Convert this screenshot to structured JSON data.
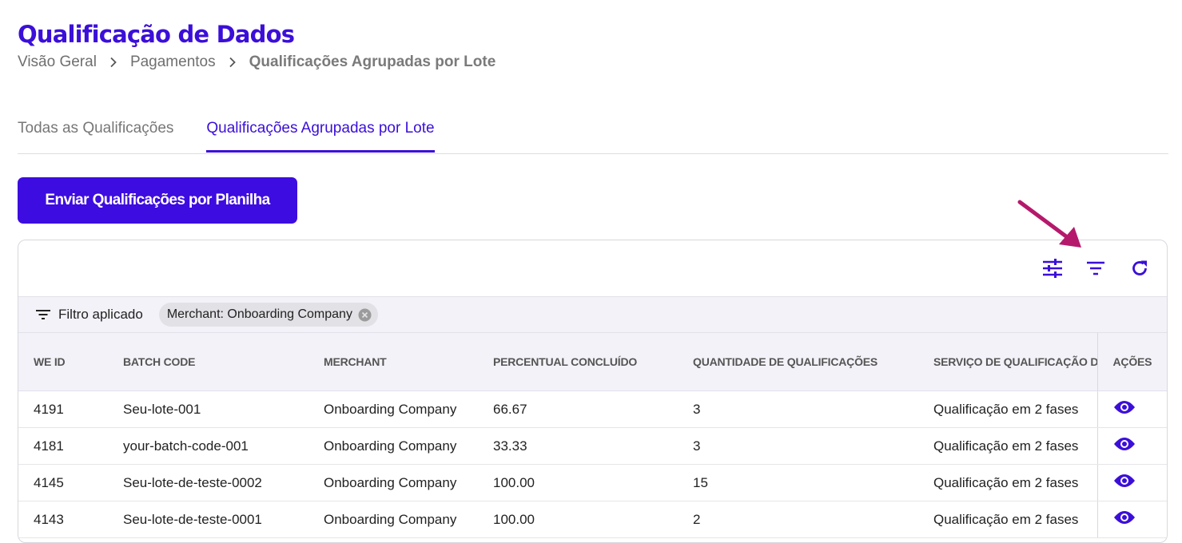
{
  "page": {
    "title": "Qualificação de Dados"
  },
  "breadcrumb": {
    "items": [
      "Visão Geral",
      "Pagamentos"
    ],
    "current": "Qualificações Agrupadas por Lote"
  },
  "tabs": [
    {
      "label": "Todas as Qualificações",
      "active": false
    },
    {
      "label": "Qualificações Agrupadas por Lote",
      "active": true
    }
  ],
  "actions": {
    "upload_label": "Enviar Qualificações por Planilha"
  },
  "toolbar": {
    "icons": [
      "columns-settings-icon",
      "filter-icon",
      "refresh-icon"
    ],
    "annotation": "arrow-pointing-to-filter-icon"
  },
  "filter": {
    "label": "Filtro aplicado",
    "chip": "Merchant: Onboarding Company"
  },
  "table": {
    "columns": [
      "WE ID",
      "BATCH CODE",
      "MERCHANT",
      "PERCENTUAL CONCLUÍDO",
      "QUANTIDADE DE QUALIFICAÇÕES",
      "SERVIÇO DE QUALIFICAÇÃO DE",
      "AÇÕES"
    ],
    "rows": [
      {
        "id": "4191",
        "batch": "Seu-lote-001",
        "merchant": "Onboarding Company",
        "percent": "66.67",
        "qty": "3",
        "service": "Qualificação em 2 fases"
      },
      {
        "id": "4181",
        "batch": "your-batch-code-001",
        "merchant": "Onboarding Company",
        "percent": "33.33",
        "qty": "3",
        "service": "Qualificação em 2 fases"
      },
      {
        "id": "4145",
        "batch": "Seu-lote-de-teste-0002",
        "merchant": "Onboarding Company",
        "percent": "100.00",
        "qty": "15",
        "service": "Qualificação em 2 fases"
      },
      {
        "id": "4143",
        "batch": "Seu-lote-de-teste-0001",
        "merchant": "Onboarding Company",
        "percent": "100.00",
        "qty": "2",
        "service": "Qualificação em 2 fases"
      }
    ]
  },
  "colors": {
    "brand": "#3b0fd8",
    "button": "#3d0ce0",
    "annotation_arrow": "#b5196c"
  }
}
